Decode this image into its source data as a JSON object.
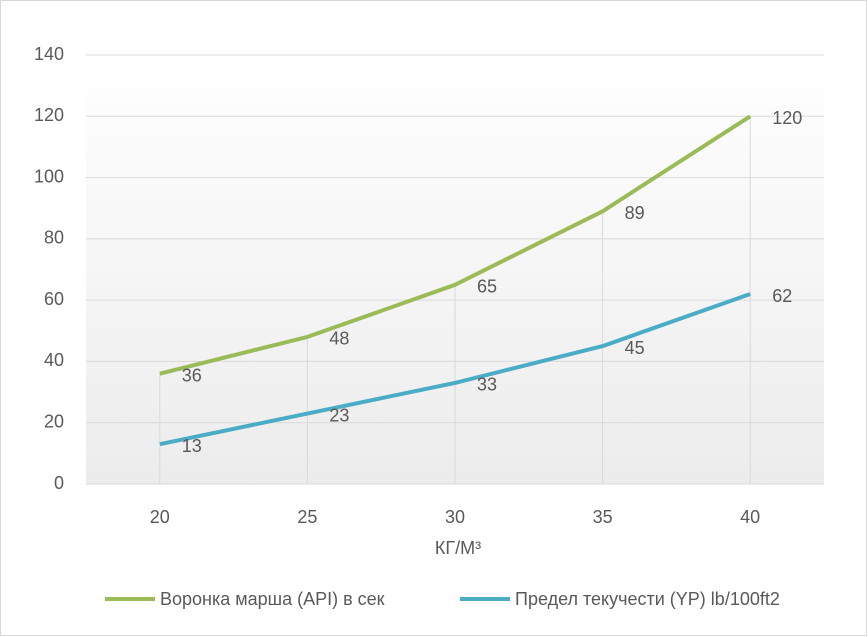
{
  "chart_data": {
    "type": "line",
    "x_label": "КГ/М³",
    "categories": [
      20,
      25,
      30,
      35,
      40
    ],
    "series": [
      {
        "name": "Воронка марша (API) в сек",
        "color": "#9bbb59",
        "values": [
          36,
          48,
          65,
          89,
          120
        ]
      },
      {
        "name": "Предел текучести (YP)  lb/100ft2",
        "color": "#4bacc6",
        "values": [
          13,
          23,
          33,
          45,
          62
        ]
      }
    ],
    "ylim": [
      0,
      140
    ],
    "yticks": [
      0,
      20,
      40,
      60,
      80,
      100,
      120,
      140
    ],
    "grid": true,
    "legend": "bottom"
  }
}
